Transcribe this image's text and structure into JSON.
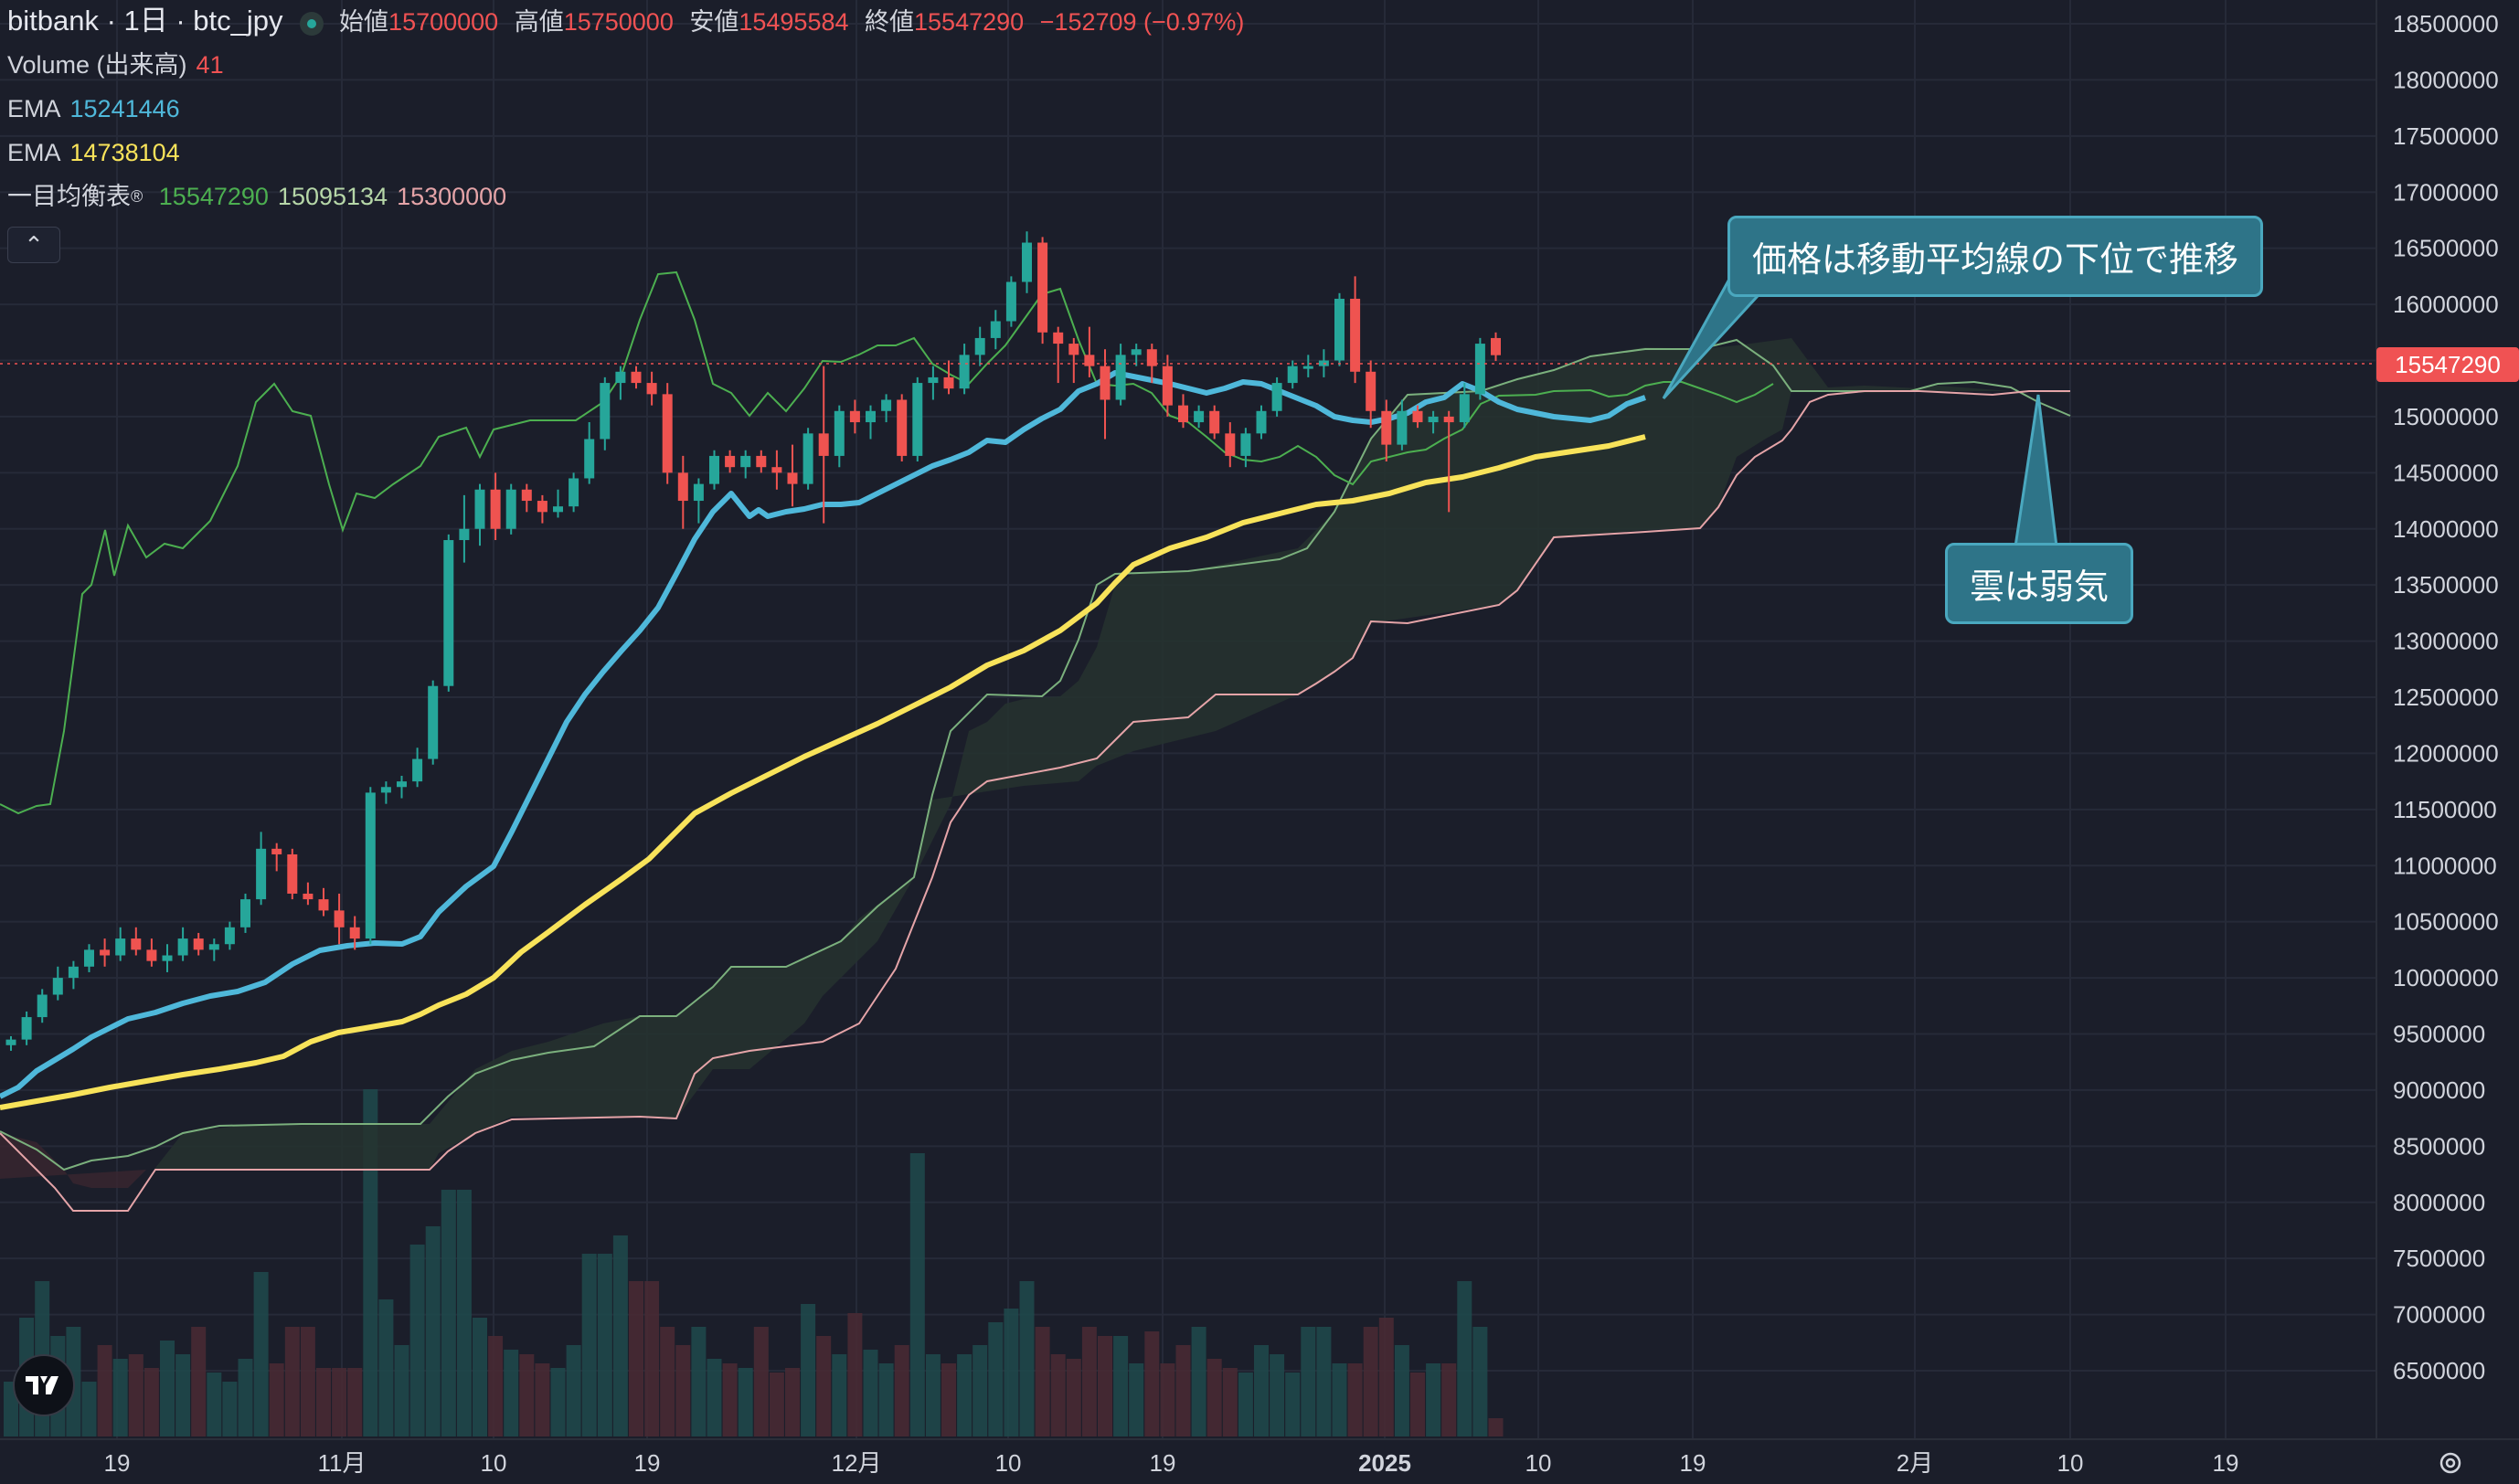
{
  "header": {
    "symbol": "bitbank · 1日 · btc_jpy",
    "open_label": "始値",
    "open_value": "15700000",
    "high_label": "高値",
    "high_value": "15750000",
    "low_label": "安値",
    "low_value": "15495584",
    "close_label": "終値",
    "close_value": "15547290",
    "change": "−152709 (−0.97%)"
  },
  "legend": {
    "volume_label": "Volume (出来高)",
    "volume_value": "41",
    "ema1_label": "EMA",
    "ema1_value": "15241446",
    "ema2_label": "EMA",
    "ema2_value": "14738104",
    "ichimoku_label": "一目均衡表",
    "ichimoku_v1": "15547290",
    "ichimoku_v2": "15095134",
    "ichimoku_v3": "15300000"
  },
  "annotations": {
    "callout1": "価格は移動平均線の下位で推移",
    "callout2": "雲は弱気"
  },
  "price_label": "15547290",
  "colors": {
    "background": "#1b1e2a",
    "up": "#26a69a",
    "down": "#ef5350",
    "ema_fast": "#4fb8da",
    "ema_slow": "#f8e35a",
    "cloud_span_a": "#7bb07d",
    "cloud_span_b": "#e5a4a8",
    "lagging": "#4caf50",
    "callout": "#2e7488"
  },
  "chart_data": {
    "type": "candlestick",
    "y_axis_ticks": [
      "18500000",
      "18000000",
      "17500000",
      "17000000",
      "16500000",
      "16000000",
      "15500000",
      "15000000",
      "14500000",
      "14000000",
      "13500000",
      "13000000",
      "12500000",
      "12000000",
      "11500000",
      "11000000",
      "10500000",
      "10000000",
      "9500000",
      "9000000",
      "8500000",
      "8000000",
      "7500000",
      "7000000",
      "6500000"
    ],
    "x_axis_ticks": [
      "19",
      "11月",
      "10",
      "19",
      "12月",
      "10",
      "19",
      "2025",
      "10",
      "19",
      "2月",
      "10",
      "19"
    ],
    "ohlc": [
      [
        9400000,
        9480000,
        9350000,
        9450000
      ],
      [
        9450000,
        9700000,
        9400000,
        9650000
      ],
      [
        9650000,
        9900000,
        9600000,
        9850000
      ],
      [
        9850000,
        10100000,
        9800000,
        10000000
      ],
      [
        10000000,
        10150000,
        9900000,
        10100000
      ],
      [
        10100000,
        10300000,
        10050000,
        10250000
      ],
      [
        10250000,
        10350000,
        10100000,
        10200000
      ],
      [
        10200000,
        10450000,
        10150000,
        10350000
      ],
      [
        10350000,
        10450000,
        10200000,
        10250000
      ],
      [
        10250000,
        10350000,
        10100000,
        10150000
      ],
      [
        10150000,
        10300000,
        10050000,
        10200000
      ],
      [
        10200000,
        10450000,
        10150000,
        10350000
      ],
      [
        10350000,
        10400000,
        10200000,
        10250000
      ],
      [
        10250000,
        10350000,
        10150000,
        10300000
      ],
      [
        10300000,
        10500000,
        10250000,
        10450000
      ],
      [
        10450000,
        10750000,
        10400000,
        10700000
      ],
      [
        10700000,
        11300000,
        10650000,
        11150000
      ],
      [
        11150000,
        11200000,
        10950000,
        11100000
      ],
      [
        11100000,
        11150000,
        10700000,
        10750000
      ],
      [
        10750000,
        10850000,
        10650000,
        10700000
      ],
      [
        10700000,
        10800000,
        10550000,
        10600000
      ],
      [
        10600000,
        10750000,
        10300000,
        10450000
      ],
      [
        10450000,
        10550000,
        10250000,
        10350000
      ],
      [
        10350000,
        11700000,
        10300000,
        11650000
      ],
      [
        11650000,
        11750000,
        11550000,
        11700000
      ],
      [
        11700000,
        11800000,
        11600000,
        11750000
      ],
      [
        11750000,
        12050000,
        11700000,
        11950000
      ],
      [
        11950000,
        12650000,
        11900000,
        12600000
      ],
      [
        12600000,
        13950000,
        12550000,
        13900000
      ],
      [
        13900000,
        14300000,
        13700000,
        14000000
      ],
      [
        14000000,
        14400000,
        13850000,
        14350000
      ],
      [
        14350000,
        14500000,
        13900000,
        14000000
      ],
      [
        14000000,
        14400000,
        13950000,
        14350000
      ],
      [
        14350000,
        14400000,
        14150000,
        14250000
      ],
      [
        14250000,
        14300000,
        14050000,
        14150000
      ],
      [
        14150000,
        14350000,
        14100000,
        14200000
      ],
      [
        14200000,
        14500000,
        14150000,
        14450000
      ],
      [
        14450000,
        14950000,
        14400000,
        14800000
      ],
      [
        14800000,
        15350000,
        14700000,
        15300000
      ],
      [
        15300000,
        15450000,
        15150000,
        15400000
      ],
      [
        15400000,
        15450000,
        15250000,
        15300000
      ],
      [
        15300000,
        15400000,
        15100000,
        15200000
      ],
      [
        15200000,
        15300000,
        14400000,
        14500000
      ],
      [
        14500000,
        14650000,
        14000000,
        14250000
      ],
      [
        14250000,
        14450000,
        14050000,
        14400000
      ],
      [
        14400000,
        14700000,
        14350000,
        14650000
      ],
      [
        14650000,
        14700000,
        14500000,
        14550000
      ],
      [
        14550000,
        14700000,
        14450000,
        14650000
      ],
      [
        14650000,
        14700000,
        14500000,
        14550000
      ],
      [
        14550000,
        14700000,
        14350000,
        14500000
      ],
      [
        14500000,
        14750000,
        14200000,
        14400000
      ],
      [
        14400000,
        14900000,
        14350000,
        14850000
      ],
      [
        14850000,
        15450000,
        14050000,
        14650000
      ],
      [
        14650000,
        15100000,
        14550000,
        15050000
      ],
      [
        15050000,
        15150000,
        14850000,
        14950000
      ],
      [
        14950000,
        15100000,
        14800000,
        15050000
      ],
      [
        15050000,
        15200000,
        14950000,
        15150000
      ],
      [
        15150000,
        15200000,
        14600000,
        14650000
      ],
      [
        14650000,
        15350000,
        14600000,
        15300000
      ],
      [
        15300000,
        15450000,
        15150000,
        15350000
      ],
      [
        15350000,
        15500000,
        15200000,
        15250000
      ],
      [
        15250000,
        15650000,
        15200000,
        15550000
      ],
      [
        15550000,
        15800000,
        15450000,
        15700000
      ],
      [
        15700000,
        15950000,
        15600000,
        15850000
      ],
      [
        15850000,
        16250000,
        15800000,
        16200000
      ],
      [
        16200000,
        16650000,
        16100000,
        16550000
      ],
      [
        16550000,
        16600000,
        15650000,
        15750000
      ],
      [
        15750000,
        15800000,
        15300000,
        15650000
      ],
      [
        15650000,
        15700000,
        15300000,
        15550000
      ],
      [
        15550000,
        15800000,
        15350000,
        15450000
      ],
      [
        15450000,
        15600000,
        14800000,
        15150000
      ],
      [
        15150000,
        15650000,
        15100000,
        15550000
      ],
      [
        15550000,
        15650000,
        15450000,
        15600000
      ],
      [
        15600000,
        15650000,
        15300000,
        15450000
      ],
      [
        15450000,
        15550000,
        15000000,
        15100000
      ],
      [
        15100000,
        15200000,
        14900000,
        14950000
      ],
      [
        14950000,
        15100000,
        14900000,
        15050000
      ],
      [
        15050000,
        15100000,
        14800000,
        14850000
      ],
      [
        14850000,
        14950000,
        14550000,
        14650000
      ],
      [
        14650000,
        14900000,
        14550000,
        14850000
      ],
      [
        14850000,
        15100000,
        14800000,
        15050000
      ],
      [
        15050000,
        15350000,
        15000000,
        15300000
      ],
      [
        15300000,
        15500000,
        15250000,
        15450000
      ],
      [
        15450000,
        15550000,
        15350000,
        15450000
      ],
      [
        15450000,
        15600000,
        15350000,
        15500000
      ],
      [
        15500000,
        16100000,
        15450000,
        16050000
      ],
      [
        16050000,
        16250000,
        15300000,
        15400000
      ],
      [
        15400000,
        15500000,
        14900000,
        15050000
      ],
      [
        15050000,
        15150000,
        14600000,
        14750000
      ],
      [
        14750000,
        15150000,
        14700000,
        15050000
      ],
      [
        15050000,
        15100000,
        14900000,
        14950000
      ],
      [
        14950000,
        15050000,
        14850000,
        15000000
      ],
      [
        15000000,
        15050000,
        14150000,
        14950000
      ],
      [
        14950000,
        15300000,
        14900000,
        15200000
      ],
      [
        15200000,
        15700000,
        15150000,
        15650000
      ],
      [
        15700000,
        15750000,
        15495584,
        15547290
      ]
    ]
  }
}
